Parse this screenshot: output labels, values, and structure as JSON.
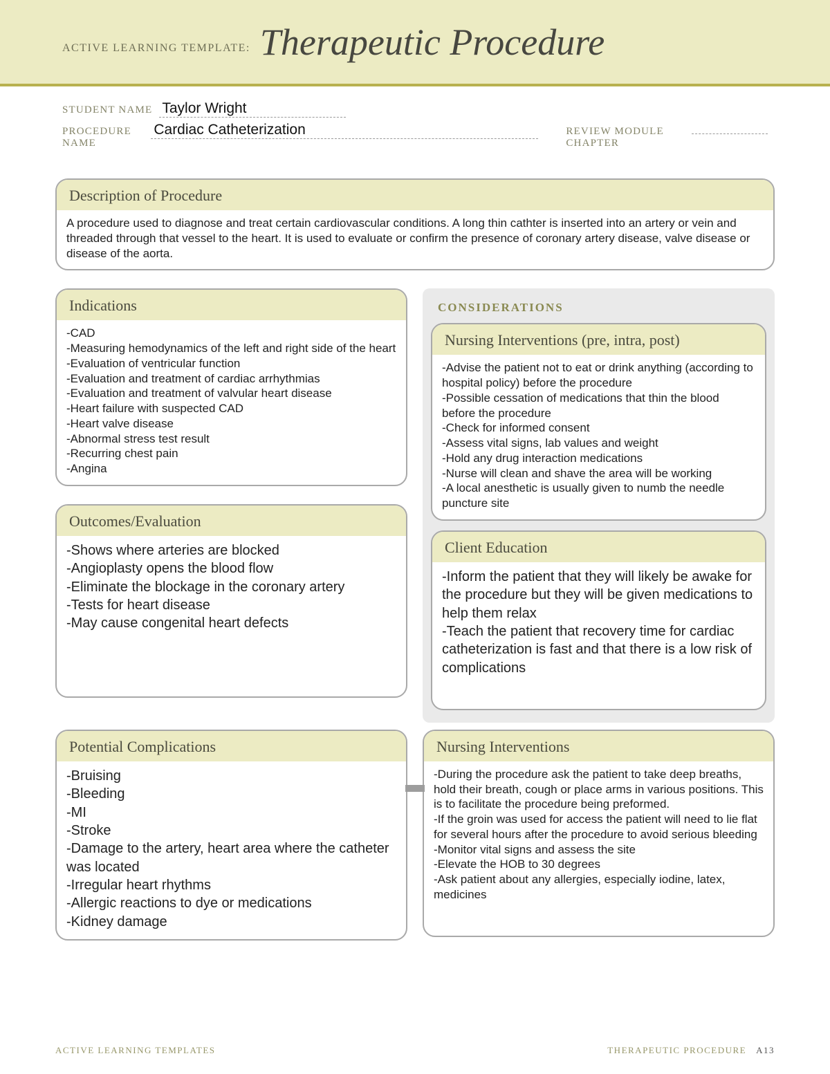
{
  "colors": {
    "banner_bg": "#ecebc3",
    "banner_rule": "#b8b14f",
    "card_border": "#a9a9a9",
    "card_header_bg": "#ecebc3",
    "considerations_bg": "#eaeaea",
    "label_text": "#848468",
    "title_text": "#474740"
  },
  "banner": {
    "prefix": "ACTIVE LEARNING TEMPLATE:",
    "title": "Therapeutic Procedure"
  },
  "meta": {
    "student_label": "STUDENT NAME",
    "student_value": "Taylor Wright",
    "procedure_label": "PROCEDURE NAME",
    "procedure_value": "Cardiac Catheterization",
    "review_label": "REVIEW MODULE CHAPTER"
  },
  "description": {
    "title": "Description of Procedure",
    "body": "A procedure used to diagnose and treat certain cardiovascular conditions. A long thin cathter is inserted into an artery or vein and threaded through that vessel to the heart. It is used to evaluate or confirm the presence of coronary artery disease, valve disease or disease of the aorta."
  },
  "indications": {
    "title": "Indications",
    "items": [
      "-CAD",
      "-Measuring hemodynamics of the left and right side of the heart",
      "-Evaluation of ventricular function",
      "-Evaluation and treatment of cardiac arrhythmias",
      "-Evaluation and treatment of valvular heart disease",
      "-Heart failure with suspected CAD",
      "-Heart valve disease",
      "-Abnormal stress test result",
      "-Recurring chest pain",
      "-Angina"
    ]
  },
  "outcomes": {
    "title": "Outcomes/Evaluation",
    "items": [
      "-Shows where arteries are blocked",
      "-Angioplasty opens the blood flow",
      "-Eliminate the blockage in the coronary artery",
      "-Tests for heart disease",
      "-May cause congenital heart defects"
    ]
  },
  "complications": {
    "title": "Potential Complications",
    "items": [
      "-Bruising",
      "-Bleeding",
      "-MI",
      "-Stroke",
      "-Damage to the artery, heart area where the catheter was located",
      "-Irregular heart rhythms",
      "-Allergic reactions to dye or medications",
      "-Kidney damage"
    ]
  },
  "considerations": {
    "heading": "CONSIDERATIONS",
    "interventions_pre": {
      "title": "Nursing Interventions (pre, intra, post)",
      "items": [
        "-Advise the patient not to eat or drink anything (according to hospital policy) before the procedure",
        "-Possible cessation of medications that thin the blood before the procedure",
        "-Check for informed consent",
        "-Assess vital signs, lab values and weight",
        "-Hold any drug interaction medications",
        "-Nurse will clean and shave the area will be working",
        "-A local anesthetic is usually given to numb the needle puncture site"
      ]
    },
    "education": {
      "title": "Client Education",
      "items": [
        "-Inform the patient that they will likely be awake for the procedure but they will be given medications to help them relax",
        "-Teach the patient that recovery time for cardiac catheterization is fast and that there is a low risk of complications"
      ]
    }
  },
  "interventions_post": {
    "title": "Nursing Interventions",
    "items": [
      "-During the procedure ask the patient to take deep breaths, hold their breath, cough or place arms in various positions. This is to facilitate the procedure being preformed.",
      "-If the groin was used for access the patient will need to lie flat for several hours after the procedure to avoid serious bleeding",
      "-Monitor vital signs and assess the site",
      "-Elevate the HOB to 30 degrees",
      "-Ask patient about any allergies, especially iodine, latex, medicines"
    ]
  },
  "footer": {
    "left": "ACTIVE LEARNING TEMPLATES",
    "right_label": "THERAPEUTIC PROCEDURE",
    "right_page": "A13"
  }
}
